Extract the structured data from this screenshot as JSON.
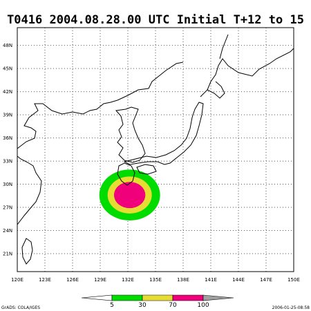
{
  "title": "T0416 2004.08.28.00 UTC Initial T+12 to 15",
  "map": {
    "xlim": [
      120,
      150
    ],
    "ylim": [
      18.67,
      50.3
    ],
    "grid": true,
    "xticks": [
      {
        "value": 120,
        "label": "120E"
      },
      {
        "value": 123,
        "label": "123E"
      },
      {
        "value": 126,
        "label": "126E"
      },
      {
        "value": 129,
        "label": "129E"
      },
      {
        "value": 132,
        "label": "132E"
      },
      {
        "value": 135,
        "label": "135E"
      },
      {
        "value": 138,
        "label": "138E"
      },
      {
        "value": 141,
        "label": "141E"
      },
      {
        "value": 144,
        "label": "144E"
      },
      {
        "value": 147,
        "label": "147E"
      },
      {
        "value": 150,
        "label": "150E"
      }
    ],
    "yticks": [
      {
        "value": 21,
        "label": "21N"
      },
      {
        "value": 24,
        "label": "24N"
      },
      {
        "value": 27,
        "label": "27N"
      },
      {
        "value": 30,
        "label": "30N"
      },
      {
        "value": 33,
        "label": "33N"
      },
      {
        "value": 36,
        "label": "36N"
      },
      {
        "value": 39,
        "label": "39N"
      },
      {
        "value": 42,
        "label": "42N"
      },
      {
        "value": 45,
        "label": "45N"
      },
      {
        "value": 48,
        "label": "48N"
      }
    ]
  },
  "probability": {
    "center_lon": 132.2,
    "center_lat": 28.6,
    "radii_deg": [
      3.3,
      2.4,
      1.7
    ]
  },
  "colorbar": {
    "levels": [
      5,
      30,
      70,
      100
    ],
    "colors": [
      "#ffffff",
      "#00dc00",
      "#e6dc32",
      "#f0007a",
      "#a0a0a0"
    ]
  },
  "footer_left": "GrADS: COLA/IGES",
  "footer_right": "2006-01-25-08:58"
}
